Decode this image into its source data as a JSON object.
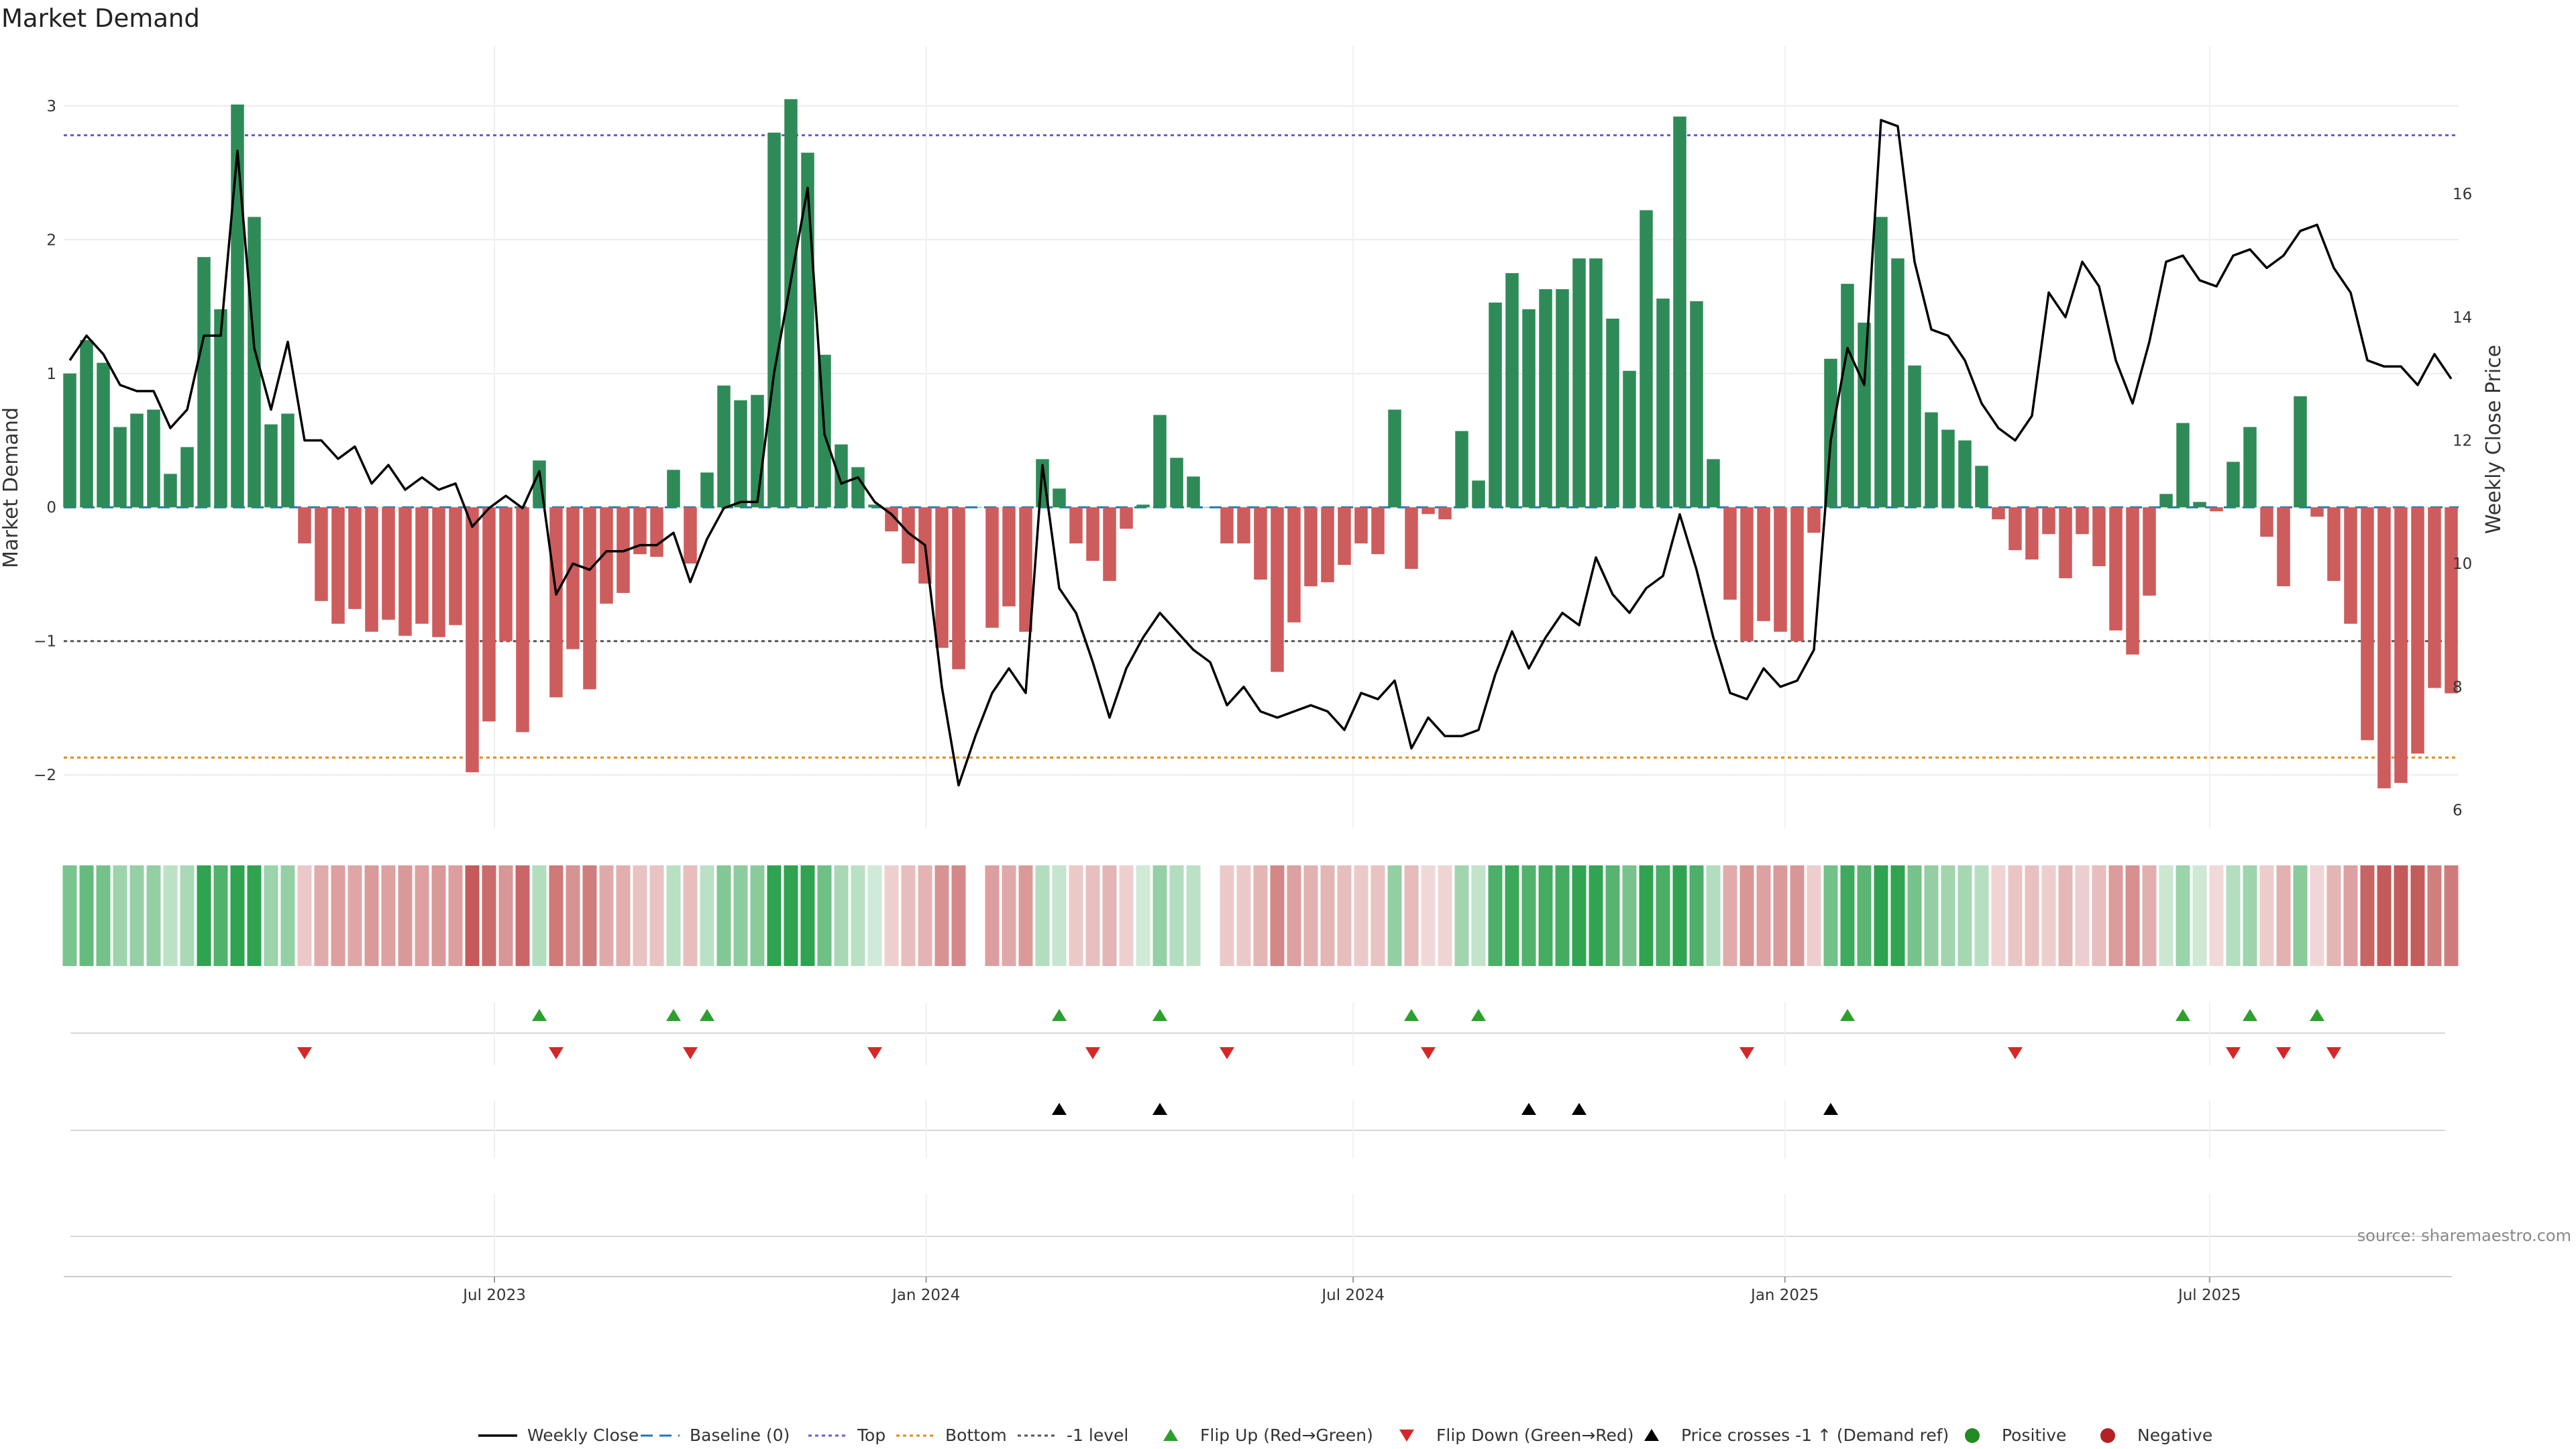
{
  "chart_data": {
    "type": "bar",
    "title": "Market Demand",
    "ylabel": "Market Demand",
    "y2label": "Weekly Close Price",
    "ylim": [
      -2.4,
      3.4
    ],
    "y2lim": [
      5.7,
      18.3
    ],
    "yticks": [
      -2,
      -1,
      0,
      1,
      2,
      3
    ],
    "y2ticks": [
      6,
      8,
      10,
      12,
      14,
      16
    ],
    "date_start": "2023-01-01",
    "date_end": "2025-10-12",
    "xtick_dates": [
      "2023-07-01",
      "2024-01-01",
      "2024-07-01",
      "2025-01-01",
      "2025-07-01"
    ],
    "xtick_labels": [
      "Jul 2023",
      "Jan 2024",
      "Jul 2024",
      "Jan 2025",
      "Jul 2025"
    ],
    "reference_lines": {
      "top": 2.78,
      "bottom": -1.87,
      "minus_one": -1,
      "baseline": 0
    },
    "market_demand": [
      1.0,
      1.25,
      1.08,
      0.6,
      0.7,
      0.73,
      0.25,
      0.45,
      1.87,
      1.48,
      3.01,
      2.17,
      0.62,
      0.7,
      -0.27,
      -0.7,
      -0.87,
      -0.76,
      -0.93,
      -0.84,
      -0.96,
      -0.87,
      -0.97,
      -0.88,
      -1.98,
      -1.6,
      -1.0,
      -1.68,
      0.35,
      -1.42,
      -1.06,
      -1.36,
      -0.72,
      -0.64,
      -0.35,
      -0.37,
      0.28,
      -0.42,
      0.26,
      0.91,
      0.8,
      0.84,
      2.8,
      3.05,
      2.65,
      1.14,
      0.47,
      0.3,
      0.02,
      -0.18,
      -0.42,
      -0.57,
      -1.05,
      -1.21,
      0.0,
      -0.9,
      -0.74,
      -0.93,
      0.36,
      0.14,
      -0.27,
      -0.4,
      -0.55,
      -0.16,
      0.02,
      0.69,
      0.37,
      0.23,
      0.0,
      -0.27,
      -0.27,
      -0.54,
      -1.23,
      -0.86,
      -0.59,
      -0.56,
      -0.43,
      -0.27,
      -0.35,
      0.73,
      -0.46,
      -0.05,
      -0.09,
      0.57,
      0.2,
      1.53,
      1.75,
      1.48,
      1.63,
      1.63,
      1.86,
      1.86,
      1.41,
      1.02,
      2.22,
      1.56,
      2.92,
      1.54,
      0.36,
      -0.69,
      -1.0,
      -0.85,
      -0.93,
      -1.0,
      -0.19,
      1.11,
      1.67,
      1.38,
      2.17,
      1.86,
      1.06,
      0.71,
      0.58,
      0.5,
      0.31,
      -0.09,
      -0.32,
      -0.39,
      -0.2,
      -0.53,
      -0.2,
      -0.44,
      -0.92,
      -1.1,
      -0.66,
      0.1,
      0.63,
      0.04,
      -0.03,
      0.34,
      0.6,
      -0.22,
      -0.59,
      0.83,
      -0.07,
      -0.55,
      -0.87,
      -1.74,
      -2.1,
      -2.06,
      -1.84,
      -1.35,
      -1.39
    ],
    "weekly_close": [
      13.3,
      13.7,
      13.4,
      12.9,
      12.8,
      12.8,
      12.2,
      12.5,
      13.7,
      13.7,
      16.7,
      13.5,
      12.5,
      13.6,
      12.0,
      12.0,
      11.7,
      11.9,
      11.3,
      11.6,
      11.2,
      11.4,
      11.2,
      11.3,
      10.6,
      10.9,
      11.1,
      10.9,
      11.5,
      9.5,
      10.0,
      9.9,
      10.2,
      10.2,
      10.3,
      10.3,
      10.5,
      9.7,
      10.4,
      10.9,
      11.0,
      11.0,
      13.1,
      14.6,
      16.1,
      12.1,
      11.3,
      11.4,
      11.0,
      10.8,
      10.5,
      10.3,
      8.0,
      6.4,
      7.2,
      7.9,
      8.3,
      7.9,
      11.6,
      9.6,
      9.2,
      8.4,
      7.5,
      8.3,
      8.8,
      9.2,
      8.9,
      8.6,
      8.4,
      7.7,
      8.0,
      7.6,
      7.5,
      7.6,
      7.7,
      7.6,
      7.3,
      7.9,
      7.8,
      8.1,
      7.0,
      7.5,
      7.2,
      7.2,
      7.3,
      8.2,
      8.9,
      8.3,
      8.8,
      9.2,
      9.0,
      10.1,
      9.5,
      9.2,
      9.6,
      9.8,
      10.8,
      9.9,
      8.8,
      7.9,
      7.8,
      8.3,
      8.0,
      8.1,
      8.6,
      12.0,
      13.5,
      12.9,
      17.2,
      17.1,
      14.9,
      13.8,
      13.7,
      13.3,
      12.6,
      12.2,
      12.0,
      12.4,
      14.4,
      14.0,
      14.9,
      14.5,
      13.3,
      12.6,
      13.6,
      14.9,
      15.0,
      14.6,
      14.5,
      15.0,
      15.1,
      14.8,
      15.0,
      15.4,
      15.5,
      14.8,
      14.4,
      13.3,
      13.2,
      13.2,
      12.9,
      13.4,
      13.0
    ],
    "flip_up_indices": [
      28,
      36,
      38,
      59,
      65,
      80,
      84,
      106,
      126,
      130,
      134
    ],
    "flip_down_indices": [
      14,
      29,
      37,
      48,
      61,
      69,
      81,
      100,
      116,
      129,
      132,
      135
    ],
    "price_cross_indices": [
      59,
      65,
      87,
      90,
      105
    ],
    "legend": [
      "Weekly Close",
      "Baseline (0)",
      "Top",
      "Bottom",
      "-1 level",
      "Flip Up (Red→Green)",
      "Flip Down (Green→Red)",
      "Price crosses -1 ↑ (Demand ref)",
      "Positive",
      "Negative"
    ],
    "colors": {
      "positive": "#2e8b57",
      "negative": "#cd5c5c",
      "line": "#000000",
      "top": "#6a5acd",
      "bottom": "#e08a1e",
      "minus_one": "#555555",
      "baseline": "#1f77b4",
      "flip_up": "#2ca02c",
      "flip_down": "#d62728",
      "cross": "#000000",
      "legend_positive": "#228b22",
      "legend_negative": "#b22222"
    }
  },
  "source": "source: sharemaestro.com"
}
